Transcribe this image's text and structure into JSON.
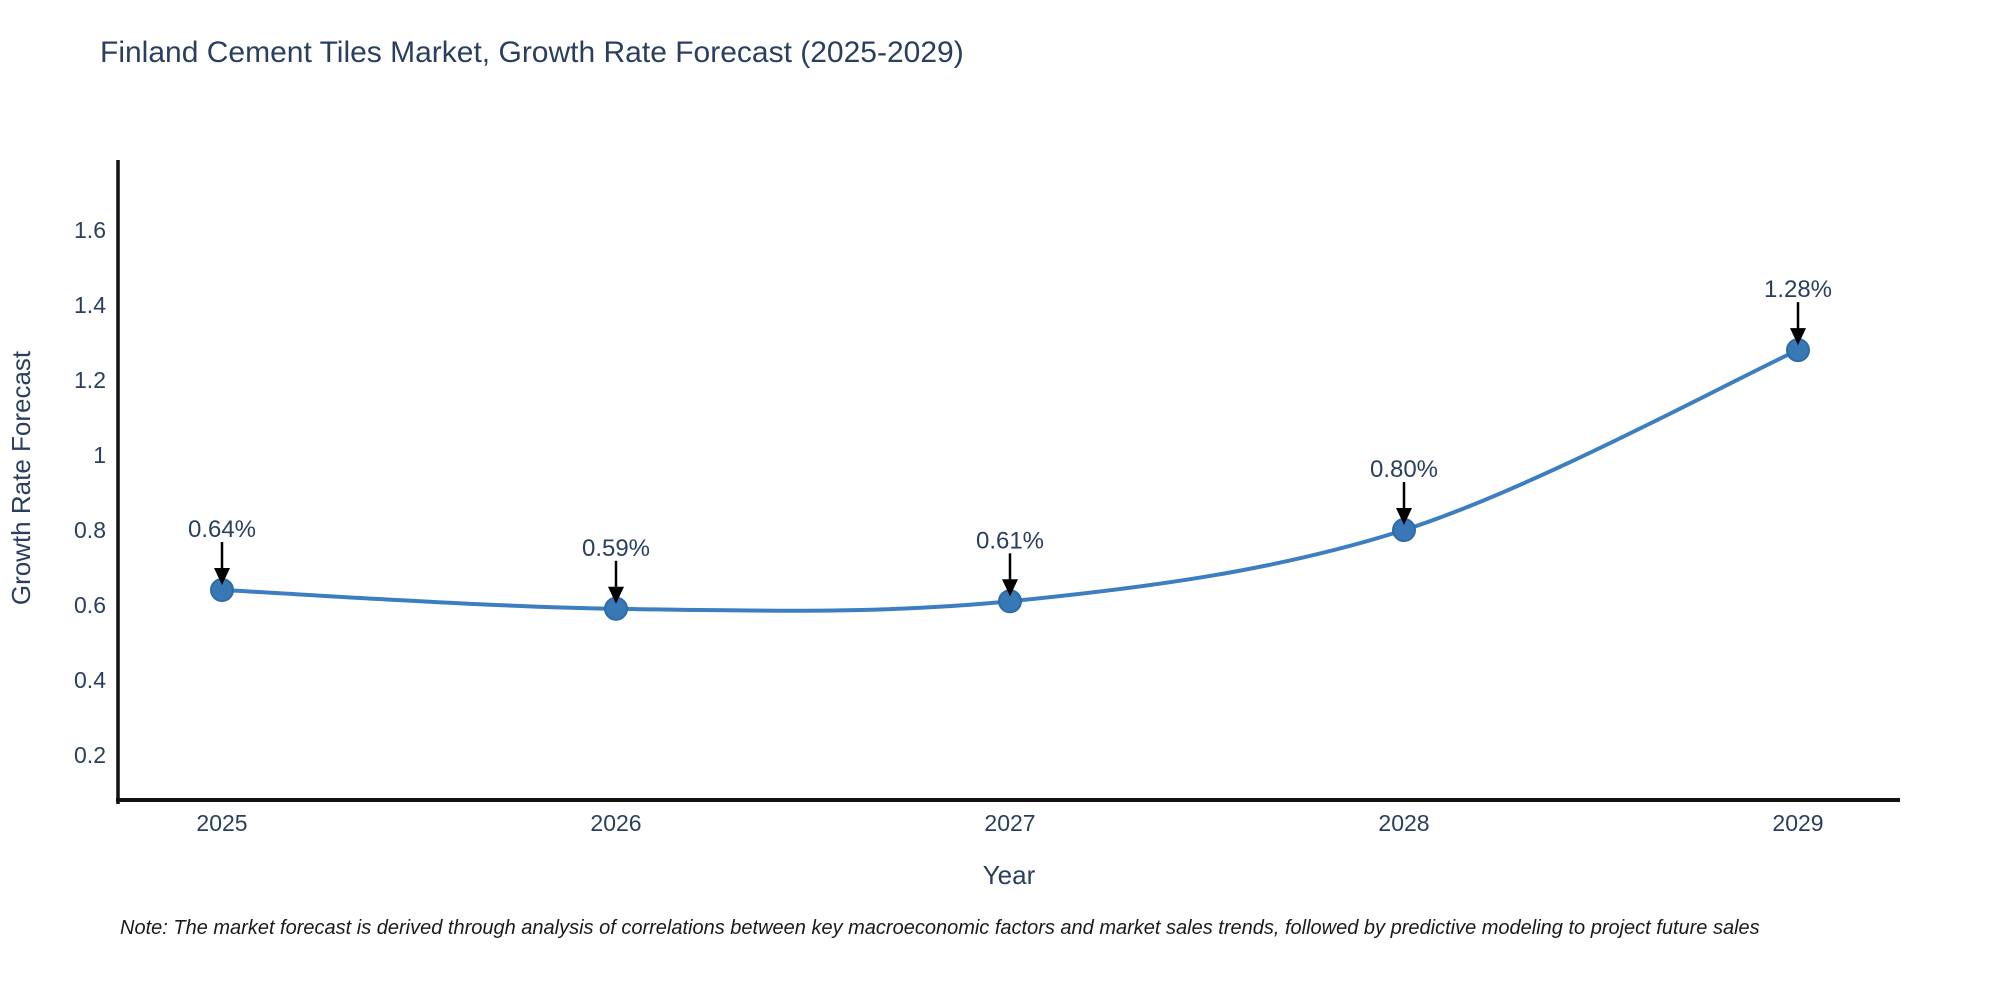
{
  "note": "Note: The market forecast is derived through analysis of correlations between key macroeconomic factors and market sales trends, followed by predictive modeling to project future sales",
  "chart_data": {
    "type": "line",
    "title": "Finland Cement Tiles Market, Growth Rate Forecast (2025-2029)",
    "xlabel": "Year",
    "ylabel": "Growth Rate Forecast",
    "categories": [
      "2025",
      "2026",
      "2027",
      "2028",
      "2029"
    ],
    "series": [
      {
        "name": "Growth Rate Forecast",
        "values": [
          0.64,
          0.59,
          0.61,
          0.8,
          1.28
        ]
      }
    ],
    "point_labels": [
      "0.64%",
      "0.59%",
      "0.61%",
      "0.80%",
      "1.28%"
    ],
    "y_tick_labels": [
      "0.2",
      "0.4",
      "0.6",
      "0.8",
      "1",
      "1.2",
      "1.4",
      "1.6"
    ],
    "y_tick_values": [
      0.2,
      0.4,
      0.6,
      0.8,
      1.0,
      1.2,
      1.4,
      1.6
    ],
    "ylim": [
      0.08,
      1.787
    ],
    "grid": false,
    "legend_position": "none",
    "line_shape": "spline",
    "colors": {
      "line": "#3c7ebf",
      "marker": "#3878b4",
      "marker_edge": "#2e6ca8",
      "axis": "#111111",
      "tick_text": "#2a3f5f",
      "annotation_text": "#2a3f5f",
      "arrow": "#000000",
      "background": "#ffffff"
    }
  }
}
